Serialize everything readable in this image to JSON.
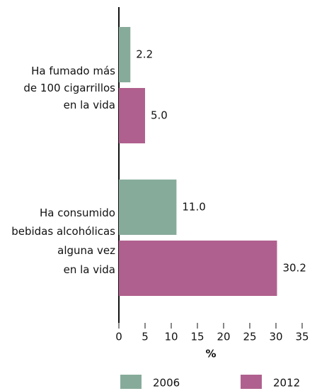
{
  "chart_data": {
    "type": "barh",
    "categories": [
      "Ha fumado más\nde 100 cigarrillos\nen la vida",
      "Ha consumido\nbebidas alcohólicas\nalguna vez\nen la vida"
    ],
    "series": [
      {
        "name": "2006",
        "color": "#87ab9b",
        "values": [
          2.2,
          11.0
        ],
        "value_labels": [
          "2.2",
          "11.0"
        ]
      },
      {
        "name": "2012",
        "color": "#b0608e",
        "values": [
          5.0,
          30.2
        ],
        "value_labels": [
          "5.0",
          "30.2"
        ]
      }
    ],
    "xlabel": "%",
    "xlim": [
      0,
      35
    ],
    "xticks": [
      0,
      5,
      10,
      15,
      20,
      25,
      30,
      35
    ],
    "legend": "bottom"
  }
}
